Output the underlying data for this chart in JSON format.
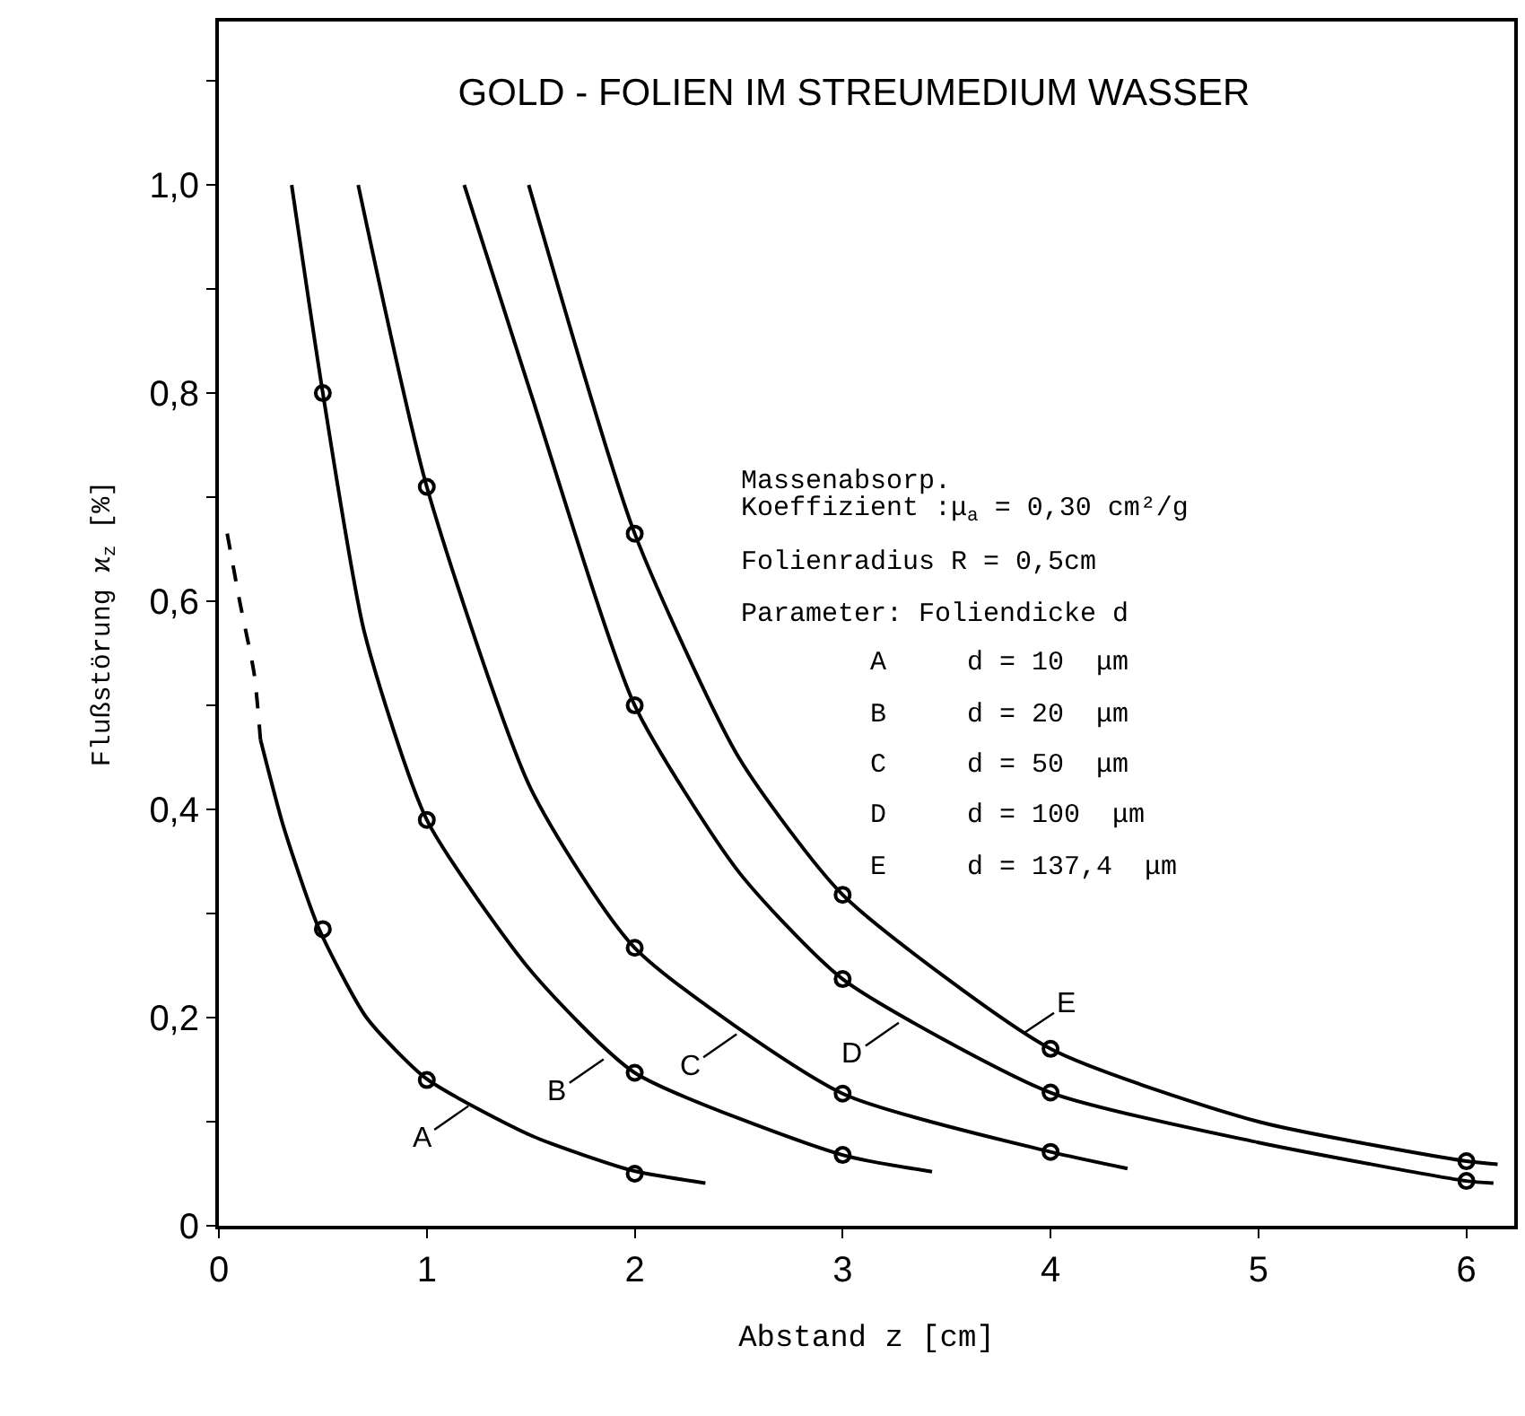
{
  "chart_data": {
    "type": "line",
    "title": "GOLD - FOLIEN IM STREUMEDIUM WASSER",
    "xlabel": "Abstand z [cm]",
    "ylabel": "Flußstörung ϰ$_{z}$ [%]",
    "xlim": [
      0,
      6.23
    ],
    "ylim": [
      0,
      1.157
    ],
    "xticks": [
      0,
      1,
      2,
      3,
      4,
      5,
      6
    ],
    "yticks": [
      {
        "value": 0,
        "label": "0"
      },
      {
        "value": 0.1,
        "label": null
      },
      {
        "value": 0.2,
        "label": "0,2"
      },
      {
        "value": 0.3,
        "label": null
      },
      {
        "value": 0.4,
        "label": "0,4"
      },
      {
        "value": 0.5,
        "label": null
      },
      {
        "value": 0.6,
        "label": "0,6"
      },
      {
        "value": 0.7,
        "label": null
      },
      {
        "value": 0.8,
        "label": "0,8"
      },
      {
        "value": 0.9,
        "label": null
      },
      {
        "value": 1.0,
        "label": "1,0"
      },
      {
        "value": 1.1,
        "label": null
      }
    ],
    "series": [
      {
        "color": "#000000",
        "line_style": "dashed",
        "marker": "none",
        "x": [
          0.04,
          0.1,
          0.17,
          0.2
        ],
        "values": [
          0.665,
          0.6,
          0.53,
          0.467
        ]
      },
      {
        "color": "#000000",
        "line_style": "solid",
        "marker": "none",
        "x": [
          0.2,
          0.31,
          0.48,
          0.71,
          1.0,
          1.51,
          1.99,
          2.34
        ],
        "values": [
          0.467,
          0.384,
          0.286,
          0.2,
          0.141,
          0.086,
          0.053,
          0.041
        ]
      },
      {
        "color": "#000000",
        "line_style": "solid",
        "marker": "none",
        "x": [
          0.35,
          0.5,
          0.7,
          1.0,
          1.5,
          2.0,
          3.0,
          3.43
        ],
        "values": [
          1.0,
          0.8,
          0.57,
          0.39,
          0.245,
          0.147,
          0.068,
          0.052
        ]
      },
      {
        "color": "#000000",
        "line_style": "solid",
        "marker": "none",
        "x": [
          0.67,
          1.0,
          1.5,
          2.0,
          3.0,
          4.0,
          4.37
        ],
        "values": [
          1.0,
          0.71,
          0.42,
          0.267,
          0.127,
          0.071,
          0.055
        ]
      },
      {
        "color": "#000000",
        "line_style": "solid",
        "marker": "none",
        "x": [
          1.18,
          1.5,
          2.0,
          2.5,
          3.0,
          4.0,
          5.0,
          6.0,
          6.13
        ],
        "values": [
          1.0,
          0.8,
          0.5,
          0.34,
          0.237,
          0.128,
          0.08,
          0.043,
          0.041
        ]
      },
      {
        "color": "#000000",
        "line_style": "solid",
        "marker": "none",
        "x": [
          1.49,
          2.0,
          2.5,
          3.0,
          4.0,
          5.0,
          6.0,
          6.15
        ],
        "values": [
          1.0,
          0.665,
          0.45,
          0.318,
          0.17,
          0.1,
          0.062,
          0.059
        ]
      },
      {
        "type": "scatter",
        "color": "#000000",
        "marker": "circle",
        "x": [
          0.5,
          1,
          2
        ],
        "values": [
          0.285,
          0.14,
          0.05
        ]
      },
      {
        "type": "scatter",
        "color": "#000000",
        "marker": "circle",
        "x": [
          0.5,
          1,
          2,
          3
        ],
        "values": [
          0.8,
          0.39,
          0.147,
          0.068
        ]
      },
      {
        "type": "scatter",
        "color": "#000000",
        "marker": "circle",
        "x": [
          1,
          2,
          3,
          4
        ],
        "values": [
          0.71,
          0.267,
          0.127,
          0.071
        ]
      },
      {
        "type": "scatter",
        "color": "#000000",
        "marker": "circle",
        "x": [
          2,
          3,
          4,
          6
        ],
        "values": [
          0.5,
          0.237,
          0.128,
          0.043
        ]
      },
      {
        "type": "scatter",
        "color": "#000000",
        "marker": "circle",
        "x": [
          2,
          3,
          4,
          6
        ],
        "values": [
          0.665,
          0.318,
          0.17,
          0.062
        ]
      }
    ],
    "annotations": [
      "Massenabsorp.",
      "Koeffizient :μ$_{a}$ = 0,30 cm²/g",
      "Folienradius R = 0,5cm",
      "Parameter: Foliendicke d",
      "        A     d = 10  μm",
      "        B     d = 20  μm",
      "        C     d = 50  μm",
      "        D     d = 100  μm",
      "        E     d = 137,4  μm",
      {
        "text": "A",
        "x": 1.2,
        "y": 0.115
      },
      {
        "text": "B",
        "x": 1.85,
        "y": 0.16
      },
      {
        "text": "C",
        "x": 2.49,
        "y": 0.184
      },
      {
        "text": "D",
        "x": 3.27,
        "y": 0.195
      },
      {
        "text": "E",
        "x": 3.87,
        "y": 0.185
      }
    ]
  }
}
